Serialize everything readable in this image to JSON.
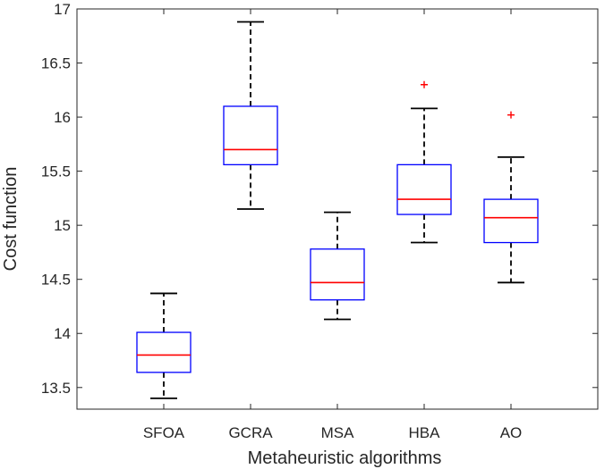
{
  "chart_data": {
    "type": "boxplot",
    "title": "",
    "xlabel": "Metaheuristic algorithms",
    "ylabel": "Cost function",
    "ylim": [
      13.3,
      17
    ],
    "yticks": [
      "13.5",
      "14",
      "14.5",
      "15",
      "15.5",
      "16",
      "16.5",
      "17"
    ],
    "grid": false,
    "colors": {
      "box": "#0000ff",
      "median": "#ff0000",
      "whisker": "#000000",
      "outlier": "#ff0000",
      "axis": "#262626"
    },
    "categories": [
      "SFOA",
      "GCRA",
      "MSA",
      "HBA",
      "AO"
    ],
    "boxes": [
      {
        "name": "SFOA",
        "min": 13.4,
        "q1": 13.64,
        "median": 13.8,
        "q3": 14.01,
        "max": 14.37,
        "outliers": []
      },
      {
        "name": "GCRA",
        "min": 15.15,
        "q1": 15.56,
        "median": 15.7,
        "q3": 16.1,
        "max": 16.88,
        "outliers": []
      },
      {
        "name": "MSA",
        "min": 14.13,
        "q1": 14.31,
        "median": 14.47,
        "q3": 14.78,
        "max": 15.12,
        "outliers": []
      },
      {
        "name": "HBA",
        "min": 14.84,
        "q1": 15.1,
        "median": 15.24,
        "q3": 15.56,
        "max": 16.08,
        "outliers": [
          16.3
        ]
      },
      {
        "name": "AO",
        "min": 14.47,
        "q1": 14.84,
        "median": 15.07,
        "q3": 15.24,
        "max": 15.63,
        "outliers": [
          16.02
        ]
      }
    ]
  }
}
